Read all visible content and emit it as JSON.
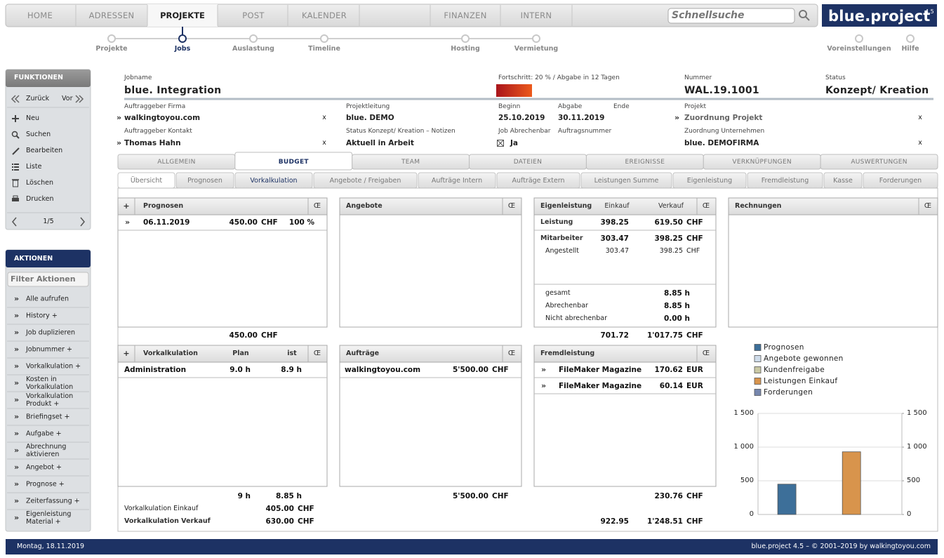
{
  "nav": {
    "items": [
      "HOME",
      "ADRESSEN",
      "PROJEKTE",
      "POST",
      "KALENDER",
      "FINANZEN",
      "INTERN"
    ],
    "search": "Schnellsuche",
    "logo": "blue.project",
    "version": "4.5"
  },
  "subnav": {
    "items": [
      "Projekte",
      "Jobs",
      "Auslastung",
      "Timeline",
      "Hosting",
      "Vermietung"
    ],
    "right": [
      "Voreinstellungen",
      "Hilfe"
    ]
  },
  "icons": {
    "more": "»",
    "clear": "x",
    "add": "+",
    "menu": "Œ"
  },
  "funktionen": {
    "title": "FUNKTIONEN",
    "back": "Zurück",
    "forward": "Vor",
    "items": [
      "Neu",
      "Suchen",
      "Bearbeiten",
      "Liste",
      "Löschen",
      "Drucken"
    ],
    "pager": "1/5"
  },
  "aktionen": {
    "title": "AKTIONEN",
    "filter": "Filter Aktionen",
    "items": [
      "Alle aufrufen",
      "History +",
      "Job duplizieren",
      "Jobnummer +",
      "Vorkalkulation +",
      "Kosten in Vorkalkulation",
      "Vorkalkulation Produkt +",
      "Briefingset +",
      "Aufgabe +",
      "Abrechnung aktivieren",
      "Angebot +",
      "Prognose +",
      "Zeiterfassung +",
      "Eigenleistung Material +"
    ]
  },
  "fields": [
    {
      "label": "Jobname",
      "value": "blue. Integration"
    },
    {
      "label": "Fortschritt: 20 % / Abgabe in 12 Tagen"
    },
    {
      "label": "Nummer",
      "value": "WAL.19.1001"
    },
    {
      "label": "Status",
      "value": "Konzept/ Kreation"
    },
    {
      "label": "Auftraggeber Firma",
      "value": "walkingtoyou.com"
    },
    {
      "label": "Projektleitung",
      "value": "blue. DEMO"
    },
    {
      "label": "Beginn",
      "value": "25.10.2019"
    },
    {
      "label": "Abgabe",
      "value": "30.11.2019"
    },
    {
      "label": "Ende"
    },
    {
      "label": "Projekt",
      "value": "Zuordnung Projekt"
    },
    {
      "label": "Auftraggeber Kontakt",
      "value": "Thomas Hahn"
    },
    {
      "label": "Status Konzept/ Kreation – Notizen",
      "value": "Aktuell in Arbeit"
    },
    {
      "label": "Job Abrechenbar",
      "value": "Ja"
    },
    {
      "label": "Auftragsnummer"
    },
    {
      "label": "Zuordnung Unternehmen",
      "value": "blue. DEMOFIRMA"
    }
  ],
  "tabs": [
    "ALLGEMEIN",
    "BUDGET",
    "TEAM",
    "DATEIEN",
    "EREIGNISSE",
    "VERKNÜPFUNGEN",
    "AUSWERTUNGEN"
  ],
  "subtabs": [
    "Übersicht",
    "Prognosen",
    "Vorkalkulation",
    "Angebote / Freigaben",
    "Aufträge Intern",
    "Aufträge Extern",
    "Leistungen Summe",
    "Eigenleistung",
    "Fremdleistung",
    "Kasse",
    "Forderungen"
  ],
  "prognosen": {
    "title": "Prognosen",
    "rows": [
      [
        "06.11.2019",
        "450.00",
        "CHF",
        "100 %"
      ]
    ],
    "total": [
      "450.00",
      "CHF"
    ]
  },
  "angebote": {
    "title": "Angebote"
  },
  "eigenleistung": {
    "title": "Eigenleistung",
    "cols": [
      "Einkauf",
      "Verkauf"
    ],
    "rows": [
      [
        "Leistung",
        "398.25",
        "619.50",
        "CHF"
      ],
      [
        "Mitarbeiter",
        "303.47",
        "398.25",
        "CHF"
      ],
      [
        "Angestellt",
        "303.47",
        "398.25",
        "CHF"
      ]
    ],
    "hours": [
      [
        "gesamt",
        "8.85 h"
      ],
      [
        "Abrechenbar",
        "8.85 h"
      ],
      [
        "Nicht abrechenbar",
        "0.00 h"
      ]
    ],
    "total": [
      "701.72",
      "1'017.75",
      "CHF"
    ]
  },
  "rechnungen": {
    "title": "Rechnungen"
  },
  "vorkalkulation": {
    "title": "Vorkalkulation",
    "cols": [
      "Plan",
      "ist"
    ],
    "rows": [
      [
        "Administration",
        "9.0 h",
        "8.9 h"
      ]
    ],
    "total": [
      "9 h",
      "8.85 h"
    ],
    "einkauf": [
      "Vorkalkulation Einkauf",
      "405.00",
      "CHF"
    ],
    "verkauf": [
      "Vorkalkulation Verkauf",
      "630.00",
      "CHF"
    ]
  },
  "auftraege": {
    "title": "Aufträge",
    "rows": [
      [
        "walkingtoyou.com",
        "5'500.00",
        "CHF"
      ]
    ],
    "total": [
      "5'500.00",
      "CHF"
    ]
  },
  "fremdleistung": {
    "title": "Fremdleistung",
    "rows": [
      [
        "FileMaker Magazine",
        "170.62",
        "EUR"
      ],
      [
        "FileMaker Magazine",
        "60.14",
        "EUR"
      ]
    ],
    "total": [
      "230.76",
      "CHF"
    ],
    "total2": [
      "922.95",
      "1'248.51",
      "CHF"
    ]
  },
  "chart_data": {
    "type": "bar",
    "categories": [
      null
    ],
    "series": [
      {
        "name": "Prognosen",
        "color": "#3d6f99",
        "values": [
          450
        ]
      },
      {
        "name": "Angebote gewonnen",
        "color": "#cfdcea",
        "values": [
          0
        ]
      },
      {
        "name": "Kundenfreigabe",
        "color": "#c9c8a4",
        "values": [
          0
        ]
      },
      {
        "name": "Leistungen Einkauf",
        "color": "#d8944c",
        "values": [
          930
        ]
      },
      {
        "name": "Forderungen",
        "color": "#7686ad",
        "values": [
          0
        ]
      }
    ],
    "ylim": [
      0,
      1500
    ],
    "yticks": [
      0,
      500,
      {
        "value": 1000,
        "label": "1 000"
      },
      {
        "value": 1500,
        "label": "1 500"
      }
    ],
    "y2lim": [
      0,
      1500
    ],
    "y2ticks": [
      0,
      500,
      {
        "value": 1000,
        "label": "1 000"
      },
      {
        "value": 1500,
        "label": "1 500"
      }
    ],
    "grid": true,
    "legend": "top-left"
  },
  "footer": {
    "date": "Montag, 18.11.2019",
    "copyright": "blue.project 4.5 – © 2001–2019 by walkingtoyou.com"
  }
}
